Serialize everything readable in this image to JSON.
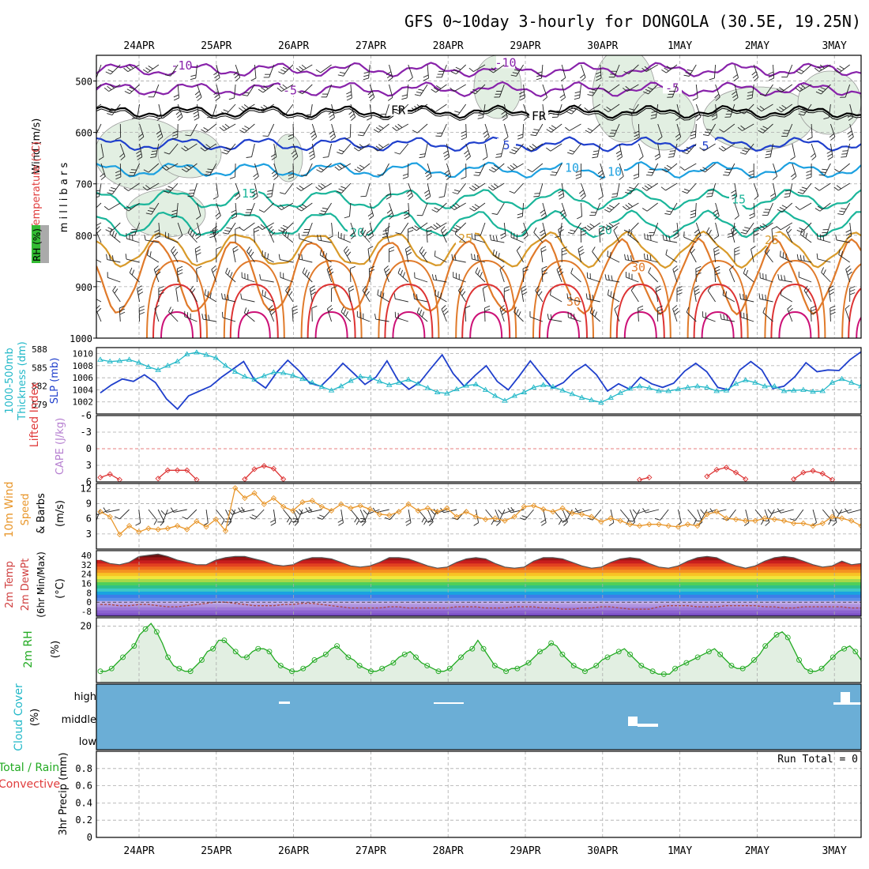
{
  "title": "GFS 0~10day 3-hourly for DONGOLA (30.5E, 19.25N)",
  "dates": [
    "24APR",
    "25APR",
    "26APR",
    "27APR",
    "28APR",
    "29APR",
    "30APR",
    "1MAY",
    "2MAY",
    "3MAY"
  ],
  "colors": {
    "frame": "#000000",
    "grid": "#aaaaaa",
    "rh_fill": "#e2efe2",
    "cloud_bg": "#6baed6",
    "green_line": "#22aa22",
    "orange_line": "#e8962a",
    "blue_line": "#1f3fcc",
    "cyan_line": "#22b8c8",
    "purple_line": "#8822aa",
    "red_line": "#dd3333"
  },
  "chart_data": [
    {
      "type": "line",
      "name": "upper-air-cross-section",
      "ylabel_parts": [
        "RH (%)",
        "Temperature (°C)",
        "Wind (m/s)"
      ],
      "ylabel_units": "millibars",
      "yticks": [
        500,
        600,
        700,
        800,
        900,
        1000
      ],
      "ylim": [
        450,
        1000
      ],
      "isotherm_labels": [
        "-10",
        "-5",
        "FR",
        "5",
        "10",
        "15",
        "20",
        "25",
        "30"
      ],
      "isotherms": [
        {
          "label": "-10",
          "color": "#8822aa",
          "level": 478,
          "amp": 6
        },
        {
          "label": "-5",
          "color": "#8822aa",
          "level": 516,
          "amp": 6
        },
        {
          "label": "FR",
          "color": "#000000",
          "level": 560,
          "amp": 5
        },
        {
          "label": "5",
          "color": "#1f3fcc",
          "level": 623,
          "amp": 6
        },
        {
          "label": "10",
          "color": "#1ca0e0",
          "level": 673,
          "amp": 7
        },
        {
          "label": "15",
          "color": "#1ab59a",
          "level": 730,
          "amp": 10
        },
        {
          "label": "20",
          "color": "#1ab59a",
          "level": 778,
          "amp": 14
        },
        {
          "label": "25",
          "color": "#d89a2a",
          "level": 828,
          "amp": 20
        },
        {
          "label": "30",
          "color": "#e07a2a",
          "level": 880,
          "amp": 45
        }
      ]
    },
    {
      "type": "line",
      "name": "slp-thickness",
      "ylabel_left": "1000-500mb Thickness (dm)",
      "ylabel_right": "SLP (mb)",
      "left_ticks": [
        579,
        582,
        585,
        588
      ],
      "right_ticks": [
        1002,
        1004,
        1006,
        1008,
        1010
      ],
      "right_ylim": [
        1000,
        1011
      ],
      "series": [
        {
          "name": "SLP",
          "values": [
            1003.5,
            1004.8,
            1005.8,
            1005.4,
            1006.5,
            1005.2,
            1002.5,
            1000.8,
            1003.0,
            1003.8,
            1004.6,
            1006.1,
            1007.4,
            1008.7,
            1005.6,
            1004.3,
            1006.9,
            1008.9,
            1007.2,
            1005.1,
            1004.6,
            1006.4,
            1008.4,
            1006.7,
            1004.9,
            1006.1,
            1008.8,
            1005.6,
            1004.1,
            1005.3,
            1007.6,
            1009.8,
            1006.7,
            1004.6,
            1006.4,
            1008.0,
            1005.4,
            1004.0,
            1006.3,
            1008.8,
            1006.5,
            1004.3,
            1005.2,
            1007.0,
            1008.2,
            1006.5,
            1003.8,
            1005.0,
            1004.1,
            1006.1,
            1005.0,
            1004.4,
            1005.1,
            1007.1,
            1008.4,
            1007.0,
            1004.4,
            1004.0,
            1007.3,
            1008.7,
            1007.3,
            1004.2,
            1004.6,
            1006.2,
            1008.5,
            1007.0,
            1007.3,
            1007.2,
            1009.0,
            1010.3
          ]
        },
        {
          "name": "Thickness",
          "values": [
            1009.0,
            1008.7,
            1008.8,
            1009.0,
            1008.5,
            1007.8,
            1007.3,
            1008.0,
            1008.7,
            1009.9,
            1010.2,
            1009.8,
            1009.3,
            1008.0,
            1007.0,
            1006.2,
            1005.7,
            1006.3,
            1006.9,
            1006.8,
            1006.4,
            1005.8,
            1005.2,
            1004.5,
            1003.9,
            1004.6,
            1005.5,
            1006.2,
            1006.0,
            1005.4,
            1004.8,
            1005.2,
            1005.7,
            1005.0,
            1004.3,
            1003.6,
            1003.4,
            1004.1,
            1004.7,
            1004.9,
            1004.0,
            1003.0,
            1002.2,
            1003.0,
            1003.6,
            1004.4,
            1004.8,
            1004.5,
            1003.9,
            1003.3,
            1002.7,
            1002.3,
            1001.9,
            1002.7,
            1003.5,
            1004.2,
            1004.6,
            1004.3,
            1003.8,
            1003.8,
            1004.1,
            1004.4,
            1004.6,
            1004.4,
            1003.8,
            1003.9,
            1005.0,
            1005.6,
            1005.2,
            1004.6,
            1004.6,
            1003.8,
            1003.9,
            1004.0,
            1003.7,
            1003.8,
            1005.2,
            1005.8,
            1005.2,
            1004.6
          ]
        }
      ]
    },
    {
      "type": "line",
      "name": "lifted-index-cape",
      "ylabel_left": "Lifted Index",
      "ylabel_right": "CAPE (J/kg)",
      "yticks": [
        -6,
        -3,
        0,
        3,
        6
      ],
      "ylim": [
        6,
        -6
      ],
      "segments": [
        {
          "x": [
            0,
            1,
            2
          ],
          "values": [
            5.2,
            4.6,
            5.6
          ]
        },
        {
          "x": [
            6,
            7,
            8,
            9,
            10
          ],
          "values": [
            5.4,
            3.9,
            3.9,
            3.9,
            5.6
          ]
        },
        {
          "x": [
            15,
            16,
            17,
            18,
            19
          ],
          "values": [
            5.5,
            3.7,
            3.1,
            3.6,
            5.5
          ]
        },
        {
          "x": [
            56,
            57
          ],
          "values": [
            5.6,
            5.2
          ]
        },
        {
          "x": [
            63,
            64,
            65,
            66,
            67
          ],
          "values": [
            5.0,
            3.8,
            3.4,
            4.3,
            5.5
          ]
        },
        {
          "x": [
            72,
            73,
            74,
            75,
            76
          ],
          "values": [
            5.5,
            4.3,
            4.0,
            4.5,
            5.6
          ]
        }
      ]
    },
    {
      "type": "line",
      "name": "10m-wind",
      "ylabel_left": "10m Wind",
      "ylabel_mid": "Speed & Barbs",
      "ylabel_units": "(m/s)",
      "yticks": [
        3,
        6,
        9,
        12
      ],
      "ylim": [
        0,
        13
      ],
      "series": [
        {
          "name": "Speed",
          "values": [
            7.4,
            6.4,
            2.9,
            4.6,
            3.4,
            4.1,
            3.9,
            4.1,
            4.6,
            3.9,
            5.5,
            4.4,
            5.9,
            3.6,
            12.1,
            10.1,
            11.1,
            8.9,
            10.1,
            8.4,
            7.6,
            9.3,
            9.6,
            8.4,
            7.6,
            8.9,
            8.1,
            8.6,
            7.9,
            6.9,
            6.7,
            7.4,
            8.9,
            7.6,
            8.1,
            7.4,
            8.1,
            6.4,
            7.4,
            6.4,
            5.9,
            6.1,
            5.6,
            6.4,
            8.4,
            8.6,
            7.9,
            7.4,
            8.1,
            7.1,
            6.9,
            6.4,
            5.4,
            6.1,
            5.6,
            4.9,
            4.6,
            4.9,
            4.9,
            4.6,
            4.4,
            4.9,
            4.6,
            6.9,
            7.4,
            6.1,
            5.9,
            5.6,
            5.6,
            6.1,
            5.9,
            5.6,
            5.1,
            5.1,
            4.6,
            5.1,
            6.4,
            6.1,
            5.6,
            4.6
          ]
        }
      ]
    },
    {
      "type": "area",
      "name": "2m-temp-dewpt",
      "ylabel_parts": [
        "2m Temp",
        "2m DewPt",
        "(6hr Min/Max)"
      ],
      "ylabel_units": "(°C)",
      "yticks": [
        -8,
        0,
        8,
        16,
        24,
        32,
        40
      ],
      "ylim": [
        -12,
        44
      ],
      "color_bands": [
        "#7a4fc4",
        "#8c63d0",
        "#9e7ad8",
        "#b094e0",
        "#c2aee8",
        "#5a8ee8",
        "#3c7ee8",
        "#19a3e0",
        "#3cc9c6",
        "#2fc18a",
        "#4fcf5a",
        "#a8d84a",
        "#f0e63c",
        "#f8c424",
        "#f49422",
        "#ee6a20",
        "#e24220",
        "#c81e1e",
        "#9e1414",
        "#6a1010",
        "#3a2a2a"
      ],
      "series": [
        {
          "name": "Temp",
          "values": [
            36,
            33,
            32,
            34,
            39,
            40,
            41,
            39,
            36,
            34,
            32,
            32,
            36,
            38,
            39,
            39,
            37,
            35,
            32,
            31,
            32,
            36,
            38,
            38,
            37,
            34,
            31,
            30,
            31,
            34,
            38,
            38,
            37,
            34,
            31,
            29,
            30,
            34,
            37,
            38,
            37,
            33,
            30,
            29,
            30,
            35,
            38,
            38,
            37,
            34,
            31,
            29,
            30,
            34,
            37,
            38,
            37,
            33,
            30,
            29,
            31,
            35,
            38,
            39,
            38,
            34,
            31,
            29,
            31,
            35,
            38,
            39,
            38,
            35,
            32,
            30,
            31,
            35,
            32,
            33
          ]
        },
        {
          "name": "DewPt",
          "values": [
            -2,
            -2,
            -3,
            -3,
            -2,
            -2,
            -3,
            -4,
            -4,
            -3,
            -2,
            -1,
            0,
            0,
            -1,
            -2,
            -3,
            -3,
            -3,
            -2,
            -2,
            -1,
            -1,
            -2,
            -3,
            -4,
            -5,
            -5,
            -5,
            -5,
            -4,
            -4,
            -5,
            -5,
            -5,
            -5,
            -5,
            -4,
            -4,
            -4,
            -5,
            -5,
            -5,
            -4,
            -4,
            -4,
            -5,
            -5,
            -6,
            -6,
            -5,
            -5,
            -4,
            -4,
            -5,
            -6,
            -6,
            -6,
            -4,
            -3,
            -3,
            -3,
            -4,
            -4,
            -4,
            -3,
            -3,
            -3,
            -3,
            -4,
            -4,
            -5,
            -5,
            -4,
            -4,
            -4,
            -4,
            -4,
            -5,
            -5
          ]
        }
      ]
    },
    {
      "type": "area",
      "name": "2m-rh",
      "ylabel": "2m RH",
      "ylabel_units": "(%)",
      "yticks": [
        20
      ],
      "ylim": [
        0,
        23
      ],
      "series": [
        {
          "name": "RH",
          "values": [
            4,
            4,
            5,
            7,
            9,
            11,
            13,
            17,
            19,
            21,
            18,
            14,
            9,
            6,
            5,
            4,
            4,
            6,
            8,
            11,
            12,
            15,
            15,
            13,
            11,
            9,
            9,
            11,
            12,
            12,
            11,
            8,
            6,
            5,
            4,
            4,
            5,
            6,
            8,
            9,
            10,
            12,
            13,
            11,
            9,
            8,
            6,
            5,
            4,
            4,
            5,
            6,
            7,
            9,
            10,
            11,
            9,
            7,
            6,
            5,
            4,
            4,
            5,
            7,
            9,
            11,
            12,
            15,
            12,
            9,
            6,
            5,
            4,
            5,
            5,
            6,
            7,
            9,
            11,
            12,
            14,
            13,
            10,
            8,
            6,
            5,
            4,
            5,
            6,
            8,
            9,
            10,
            11,
            12,
            10,
            8,
            6,
            5,
            4,
            3,
            3,
            3,
            5,
            6,
            7,
            8,
            9,
            10,
            11,
            12,
            10,
            8,
            6,
            5,
            5,
            6,
            8,
            10,
            13,
            15,
            17,
            18,
            16,
            12,
            8,
            5,
            4,
            4,
            5,
            7,
            9,
            11,
            12,
            13,
            11,
            8
          ]
        }
      ]
    },
    {
      "type": "bar",
      "name": "cloud-cover",
      "ylabel": "Cloud Cover",
      "ylabel_units": "(%)",
      "levels": [
        "high",
        "middle",
        "low"
      ]
    },
    {
      "type": "line",
      "name": "3hr-precip",
      "ylabel_parts": [
        "Total / Rain",
        "Convective"
      ],
      "ylabel_units": "3hr Precip (mm)",
      "yticks": [
        0,
        0.2,
        0.4,
        0.6,
        0.8
      ],
      "ylim": [
        0,
        1
      ],
      "annotation": "Run Total = 0"
    }
  ]
}
